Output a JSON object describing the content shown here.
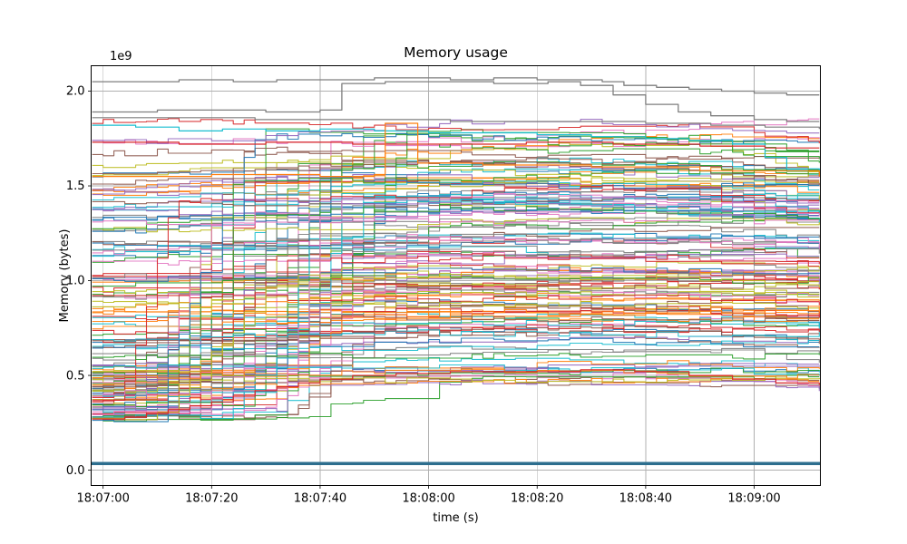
{
  "page": {
    "background": "#ffffff"
  },
  "chart_data": {
    "type": "line",
    "title": "Memory usage",
    "xlabel": "time (s)",
    "ylabel": "Memory (bytes)",
    "y_offset_text": "1e9",
    "grid": true,
    "legend": "none",
    "axes": {
      "x_ticks_seconds": [
        0,
        20,
        40,
        60,
        80,
        100,
        120
      ],
      "x_tick_labels": [
        "18:07:00",
        "18:07:20",
        "18:07:40",
        "18:08:00",
        "18:08:20",
        "18:08:40",
        "18:09:00"
      ],
      "xlim_seconds": [
        -2.2,
        132.2
      ],
      "y_ticks_e9": [
        0.0,
        0.5,
        1.0,
        1.5,
        2.0
      ],
      "y_tick_labels": [
        "0.0",
        "0.5",
        "1.0",
        "1.5",
        "2.0"
      ],
      "ylim_e9": [
        -0.081,
        2.134
      ],
      "grid_color": "#b0b0b0",
      "spine_color": "#000000",
      "text_color": "#000000"
    },
    "color_cycle": [
      "#1f77b4",
      "#ff7f0e",
      "#2ca02c",
      "#d62728",
      "#9467bd",
      "#8c564b",
      "#e377c2",
      "#7f7f7f",
      "#bcbd22",
      "#17becf"
    ],
    "highlight_series": [
      {
        "name": "top-gray-line",
        "color": "#7f7f7f",
        "width": 1.3,
        "points": [
          [
            -2,
            2.05
          ],
          [
            8,
            2.05
          ],
          [
            14,
            2.06
          ],
          [
            24,
            2.05
          ],
          [
            32,
            2.06
          ],
          [
            44,
            2.06
          ],
          [
            50,
            2.07
          ],
          [
            58,
            2.07
          ],
          [
            64,
            2.06
          ],
          [
            72,
            2.07
          ],
          [
            80,
            2.06
          ],
          [
            86,
            2.06
          ],
          [
            92,
            2.05
          ],
          [
            96,
            2.03
          ],
          [
            102,
            2.02
          ],
          [
            108,
            2.01
          ],
          [
            114,
            2.0
          ],
          [
            120,
            1.99
          ],
          [
            126,
            1.98
          ],
          [
            132,
            1.98
          ]
        ]
      },
      {
        "name": "gray-step-up-line",
        "color": "#7f7f7f",
        "width": 1.3,
        "points": [
          [
            -2,
            1.89
          ],
          [
            10,
            1.9
          ],
          [
            20,
            1.9
          ],
          [
            30,
            1.89
          ],
          [
            40,
            1.9
          ],
          [
            44,
            2.04
          ],
          [
            52,
            2.05
          ],
          [
            62,
            2.05
          ],
          [
            72,
            2.04
          ],
          [
            82,
            2.05
          ],
          [
            88,
            2.03
          ],
          [
            94,
            1.98
          ],
          [
            100,
            1.93
          ],
          [
            106,
            1.89
          ],
          [
            112,
            1.87
          ],
          [
            120,
            1.85
          ],
          [
            126,
            1.84
          ],
          [
            132,
            1.84
          ]
        ]
      },
      {
        "name": "gray-high-flat-line",
        "color": "#7f7f7f",
        "width": 1.2,
        "points": [
          [
            -2,
            1.86
          ],
          [
            12,
            1.86
          ],
          [
            28,
            1.85
          ],
          [
            46,
            1.85
          ],
          [
            64,
            1.84
          ],
          [
            82,
            1.84
          ],
          [
            100,
            1.83
          ],
          [
            112,
            1.82
          ],
          [
            122,
            1.81
          ],
          [
            132,
            1.8
          ]
        ]
      },
      {
        "name": "cyan-high-line",
        "color": "#17becf",
        "width": 1.2,
        "points": [
          [
            -2,
            1.82
          ],
          [
            6,
            1.81
          ],
          [
            14,
            1.79
          ],
          [
            22,
            1.8
          ],
          [
            30,
            1.79
          ],
          [
            40,
            1.8
          ],
          [
            50,
            1.79
          ],
          [
            60,
            1.78
          ],
          [
            70,
            1.78
          ],
          [
            80,
            1.77
          ],
          [
            90,
            1.76
          ],
          [
            100,
            1.75
          ],
          [
            108,
            1.74
          ],
          [
            116,
            1.72
          ],
          [
            122,
            1.65
          ],
          [
            126,
            1.59
          ],
          [
            132,
            1.57
          ]
        ]
      },
      {
        "name": "red-high-flat-line",
        "color": "#d62728",
        "width": 1.2,
        "points": [
          [
            -2,
            1.73
          ],
          [
            14,
            1.72
          ],
          [
            30,
            1.73
          ],
          [
            46,
            1.72
          ],
          [
            62,
            1.72
          ],
          [
            78,
            1.73
          ],
          [
            94,
            1.72
          ],
          [
            110,
            1.71
          ],
          [
            122,
            1.7
          ],
          [
            132,
            1.7
          ]
        ]
      },
      {
        "name": "orange-spike-line",
        "color": "#ff7f0e",
        "width": 1.2,
        "points": [
          [
            -2,
            1.55
          ],
          [
            20,
            1.56
          ],
          [
            40,
            1.55
          ],
          [
            50,
            1.56
          ],
          [
            52,
            1.83
          ],
          [
            56,
            1.83
          ],
          [
            58,
            1.62
          ],
          [
            70,
            1.61
          ],
          [
            90,
            1.6
          ],
          [
            110,
            1.58
          ],
          [
            132,
            1.55
          ]
        ]
      },
      {
        "name": "red-low-ramp-line",
        "color": "#d62728",
        "width": 1.2,
        "points": [
          [
            -2,
            0.27
          ],
          [
            4,
            0.28
          ],
          [
            8,
            0.3
          ],
          [
            12,
            0.32
          ],
          [
            16,
            0.34
          ],
          [
            20,
            0.36
          ],
          [
            24,
            0.39
          ],
          [
            28,
            0.42
          ],
          [
            32,
            0.44
          ],
          [
            36,
            0.46
          ],
          [
            40,
            0.48
          ],
          [
            46,
            0.5
          ],
          [
            54,
            0.51
          ],
          [
            64,
            0.52
          ],
          [
            76,
            0.52
          ],
          [
            88,
            0.53
          ],
          [
            98,
            0.52
          ],
          [
            108,
            0.5
          ],
          [
            116,
            0.48
          ],
          [
            124,
            0.46
          ],
          [
            132,
            0.45
          ]
        ]
      },
      {
        "name": "baseline-flat-thick-line",
        "color": "#2d6e8e",
        "width": 3.5,
        "points": [
          [
            -2.2,
            0.035
          ],
          [
            132.2,
            0.035
          ]
        ]
      }
    ],
    "ensemble": {
      "description": "~150 unlabeled per-process memory series densely overlapping between ~0.3e9 and ~1.83e9 bytes; roughly 45% start low (0.26-0.55e9) near 18:07:00 and ramp up steeply between ~18:07:05 and ~18:07:45; slight drift upward through 18:08:20 and gentle decline after ~18:08:45",
      "seed": 1337,
      "count": 150,
      "sample_step_seconds": 2,
      "level_range_e9": [
        0.45,
        1.83
      ],
      "ramp_fraction": 0.45,
      "ramp_start_range_s": [
        2,
        34
      ],
      "ramp_duration_range_s": [
        6,
        34
      ],
      "start_range_e9": [
        0.26,
        0.55
      ],
      "decline_fraction": 0.6,
      "decline_start_range_s": [
        100,
        122
      ],
      "decline_max": 0.1,
      "jitter_e9": 0.02,
      "line_width": 1.1,
      "opacity": 0.9
    }
  }
}
